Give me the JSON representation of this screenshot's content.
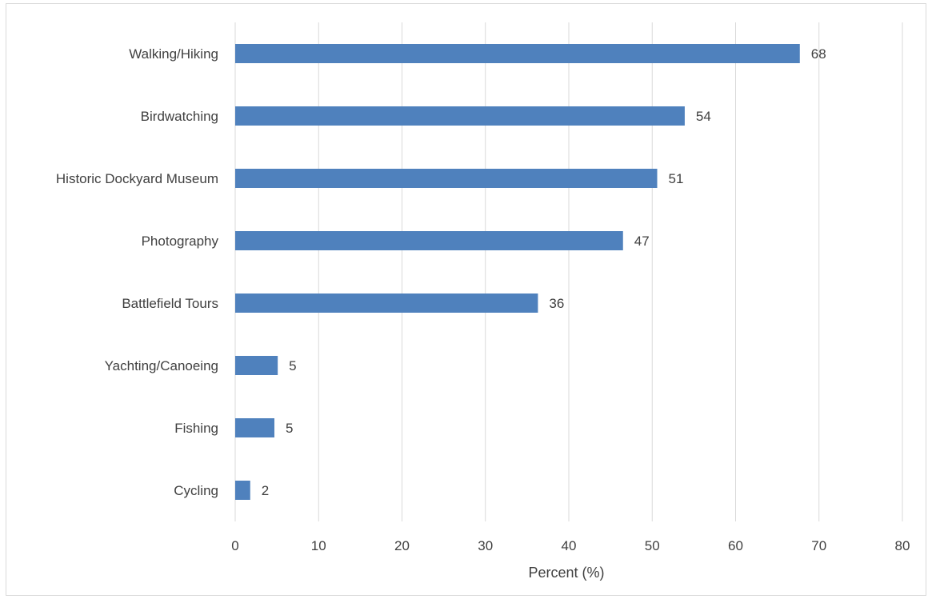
{
  "chart_data": {
    "type": "bar",
    "orientation": "horizontal",
    "title": "",
    "xlabel": "Percent (%)",
    "ylabel": "",
    "xlim": [
      0,
      80
    ],
    "xticks": [
      0,
      10,
      20,
      30,
      40,
      50,
      60,
      70,
      80
    ],
    "grid": true,
    "legend": "none",
    "categories": [
      "Walking/Hiking",
      "Birdwatching",
      "Historic Dockyard Museum",
      "Photography",
      "Battlefield Tours",
      "Yachting/Canoeing",
      "Fishing",
      "Cycling"
    ],
    "values": [
      68,
      54,
      51,
      47,
      36,
      5,
      5,
      2
    ],
    "series": [
      {
        "values": [
          67.7,
          53.9,
          50.6,
          46.5,
          36.3,
          5.1,
          4.7,
          1.8
        ],
        "data_labels": [
          "68",
          "54",
          "51",
          "47",
          "36",
          "5",
          "5",
          "2"
        ],
        "color": "#4f81bd"
      }
    ],
    "colors": {
      "bar": "#4f81bd",
      "grid": "#d9d9d9",
      "text": "#404040"
    }
  }
}
